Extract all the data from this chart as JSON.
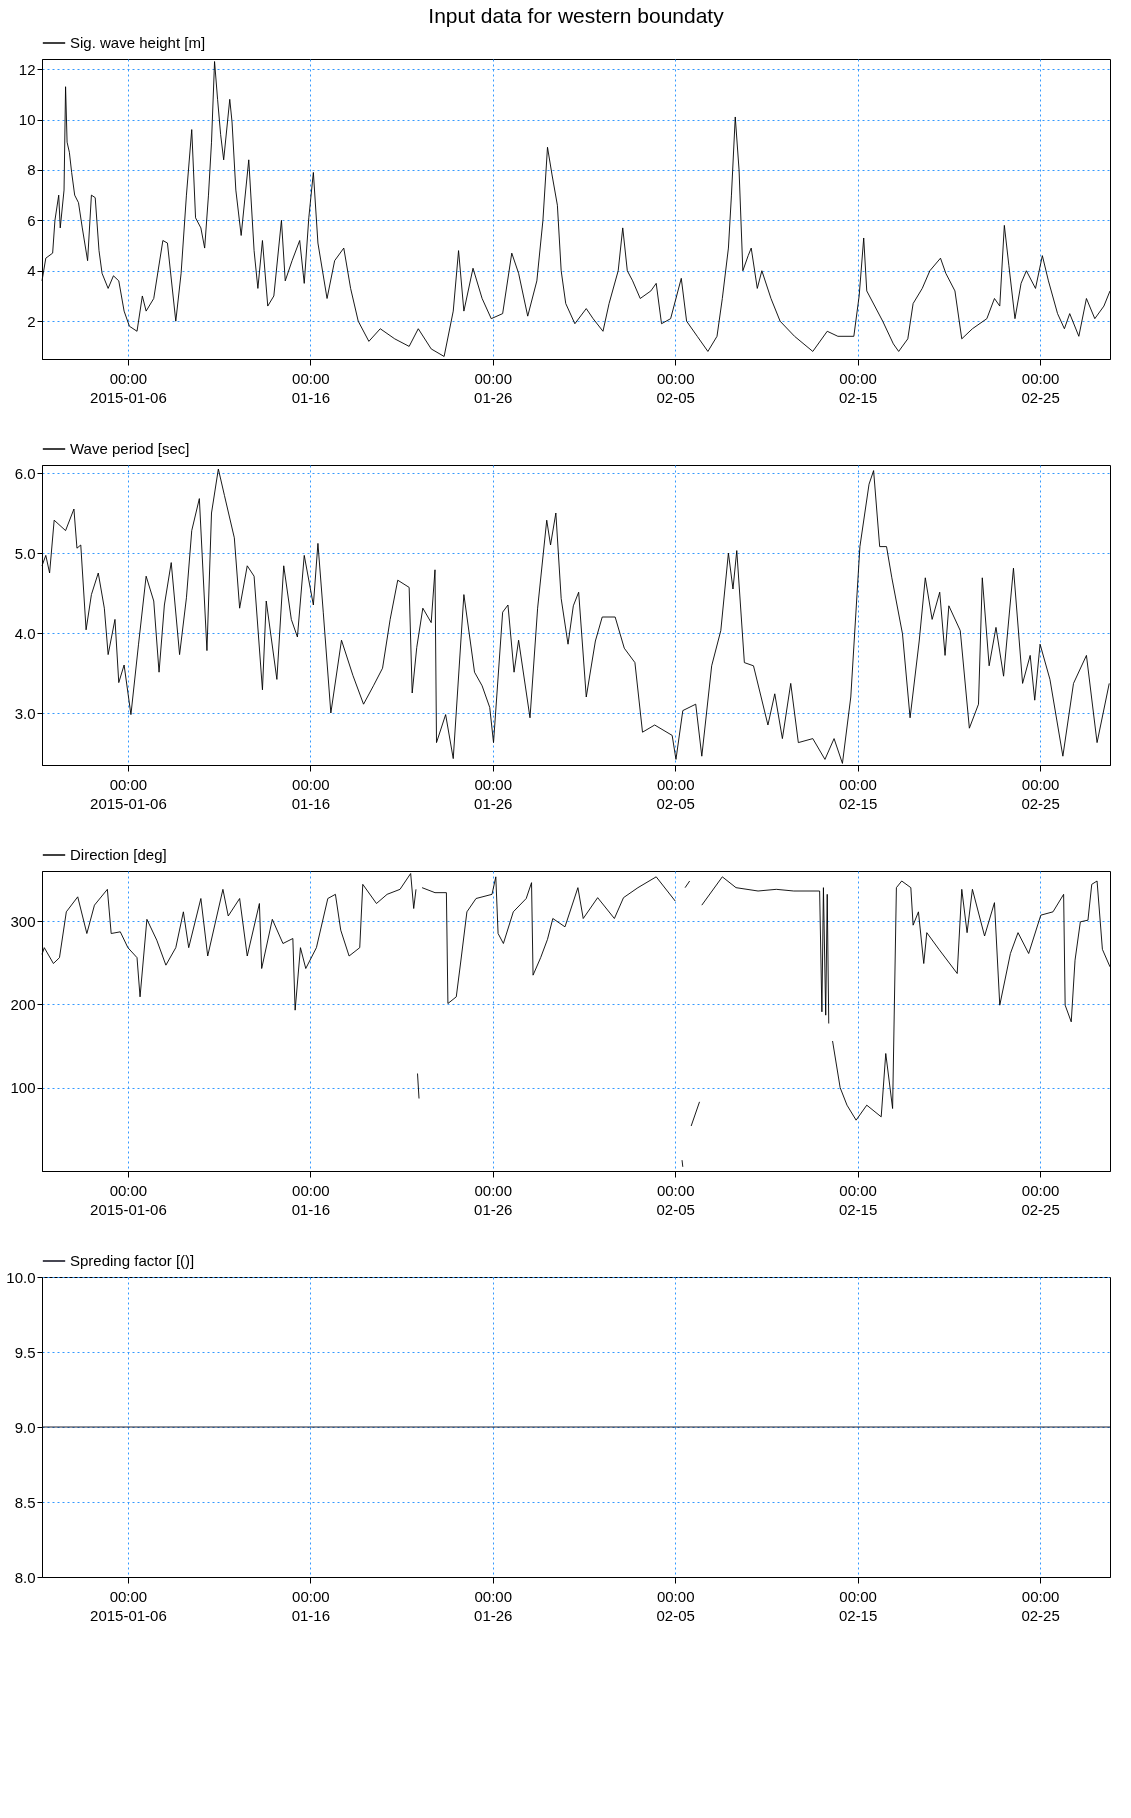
{
  "chart_data": [
    {
      "type": "line",
      "title": "Input data for western boundaty",
      "legend": "top left",
      "grid": true,
      "xlim": [
        "2015-01-01T07:00",
        "2015-02-28T20:00"
      ],
      "xticks": [
        {
          "value": "2015-01-06T00:00",
          "label": "00:00\n2015-01-06"
        },
        {
          "value": "2015-01-16T00:00",
          "label": "00:00\n01-16"
        },
        {
          "value": "2015-01-26T00:00",
          "label": "00:00\n01-26"
        },
        {
          "value": "2015-02-05T00:00",
          "label": "00:00\n02-05"
        },
        {
          "value": "2015-02-15T00:00",
          "label": "00:00\n02-15"
        },
        {
          "value": "2015-02-25T00:00",
          "label": "00:00\n02-25"
        }
      ],
      "ylim": [
        0.5,
        12.4
      ],
      "yticks": [
        2,
        4,
        6,
        8,
        10,
        12
      ],
      "series": [
        {
          "name": "Sig. wave height [m]",
          "color": "#000000",
          "x": [
            "2015-01-01T07:00",
            "2015-01-01T12:00",
            "2015-01-01T21:00",
            "2015-01-02T00:00",
            "2015-01-02T05:00",
            "2015-01-02T07:00",
            "2015-01-02T12:00",
            "2015-01-02T14:00",
            "2015-01-02T16:00",
            "2015-01-02T19:00",
            "2015-01-02T22:00",
            "2015-01-03T02:00",
            "2015-01-03T07:00",
            "2015-01-03T12:00",
            "2015-01-03T19:00",
            "2015-01-04T00:00",
            "2015-01-04T05:00",
            "2015-01-04T10:00",
            "2015-01-04T14:00",
            "2015-01-04T22:00",
            "2015-01-05T05:00",
            "2015-01-05T12:00",
            "2015-01-05T19:00",
            "2015-01-06T02:00",
            "2015-01-06T12:00",
            "2015-01-06T19:00",
            "2015-01-07T00:00",
            "2015-01-07T10:00",
            "2015-01-07T22:00",
            "2015-01-08T04:00",
            "2015-01-08T15:00",
            "2015-01-08T22:00",
            "2015-01-09T05:00",
            "2015-01-09T12:00",
            "2015-01-09T17:00",
            "2015-01-10T00:00",
            "2015-01-10T05:00",
            "2015-01-10T10:00",
            "2015-01-10T14:00",
            "2015-01-10T18:00",
            "2015-01-10T22:00",
            "2015-01-11T02:00",
            "2015-01-11T06:00",
            "2015-01-11T14:00",
            "2015-01-11T17:00",
            "2015-01-11T22:00",
            "2015-01-12T05:00",
            "2015-01-12T15:00",
            "2015-01-12T22:00",
            "2015-01-13T03:00",
            "2015-01-13T09:00",
            "2015-01-13T16:00",
            "2015-01-14T00:00",
            "2015-01-14T10:00",
            "2015-01-14T15:00",
            "2015-01-15T00:00",
            "2015-01-15T10:00",
            "2015-01-15T16:00",
            "2015-01-15T22:00",
            "2015-01-16T04:00",
            "2015-01-16T10:00",
            "2015-01-16T22:00",
            "2015-01-17T08:00",
            "2015-01-17T20:00",
            "2015-01-18T05:00",
            "2015-01-18T15:00",
            "2015-01-19T05:00",
            "2015-01-19T20:00",
            "2015-01-20T15:00",
            "2015-01-21T10:00",
            "2015-01-21T22:00",
            "2015-01-22T15:00",
            "2015-01-23T08:00",
            "2015-01-23T20:00",
            "2015-01-24T03:00",
            "2015-01-24T10:00",
            "2015-01-24T22:00",
            "2015-01-25T10:00",
            "2015-01-25T22:00",
            "2015-01-26T13:00",
            "2015-01-27T01:00",
            "2015-01-27T10:00",
            "2015-01-27T22:00",
            "2015-01-28T10:00",
            "2015-01-28T18:00",
            "2015-01-29T00:00",
            "2015-01-29T06:00",
            "2015-01-29T13:00",
            "2015-01-29T18:00",
            "2015-01-30T00:00",
            "2015-01-30T12:00",
            "2015-01-31T03:00",
            "2015-01-31T12:00",
            "2015-02-01T01:00",
            "2015-02-01T09:00",
            "2015-02-01T21:00",
            "2015-02-02T03:00",
            "2015-02-02T09:00",
            "2015-02-02T16:00",
            "2015-02-03T02:00",
            "2015-02-03T16:00",
            "2015-02-03T23:00",
            "2015-02-04T06:00",
            "2015-02-04T18:00",
            "2015-02-05T08:00",
            "2015-02-05T15:00",
            "2015-02-06T05:00",
            "2015-02-06T19:00",
            "2015-02-07T07:00",
            "2015-02-07T14:00",
            "2015-02-07T22:00",
            "2015-02-08T02:00",
            "2015-02-08T07:00",
            "2015-02-08T12:00",
            "2015-02-08T17:00",
            "2015-02-09T00:00",
            "2015-02-09T04:00",
            "2015-02-09T12:00",
            "2015-02-09T18:00",
            "2015-02-10T06:00",
            "2015-02-10T18:00",
            "2015-02-11T13:00",
            "2015-02-12T13:00",
            "2015-02-13T08:00",
            "2015-02-13T22:00",
            "2015-02-14T19:00",
            "2015-02-15T02:00",
            "2015-02-15T08:00",
            "2015-02-15T12:00",
            "2015-02-16T09:00",
            "2015-02-16T23:00",
            "2015-02-17T06:00",
            "2015-02-17T18:00",
            "2015-02-18T01:00",
            "2015-02-18T13:00",
            "2015-02-18T23:00",
            "2015-02-19T13:00",
            "2015-02-19T20:00",
            "2015-02-20T08:00",
            "2015-02-20T17:00",
            "2015-02-21T07:00",
            "2015-02-22T02:00",
            "2015-02-22T12:00",
            "2015-02-22T19:00",
            "2015-02-23T01:00",
            "2015-02-23T07:00",
            "2015-02-23T15:00",
            "2015-02-23T23:00",
            "2015-02-24T06:00",
            "2015-02-24T18:00",
            "2015-02-25T03:00",
            "2015-02-25T11:00",
            "2015-02-25T23:00",
            "2015-02-26T08:00",
            "2015-02-26T15:00",
            "2015-02-27T03:00",
            "2015-02-27T13:00",
            "2015-02-28T00:00",
            "2015-02-28T12:00",
            "2015-02-28T20:00"
          ],
          "values": [
            3.6,
            4.5,
            4.7,
            6.0,
            7.0,
            5.7,
            7.2,
            11.3,
            9.1,
            8.7,
            7.9,
            7.0,
            6.7,
            5.7,
            4.4,
            7.0,
            6.9,
            4.8,
            3.9,
            3.3,
            3.8,
            3.6,
            2.4,
            1.8,
            1.6,
            3.0,
            2.4,
            2.9,
            5.2,
            5.1,
            2.0,
            3.9,
            7.0,
            9.6,
            6.1,
            5.7,
            4.9,
            7.0,
            9.1,
            12.3,
            10.8,
            9.4,
            8.4,
            10.8,
            9.9,
            7.2,
            5.4,
            8.4,
            4.8,
            3.3,
            5.2,
            2.6,
            3.0,
            6.0,
            3.6,
            4.4,
            5.2,
            3.5,
            6.1,
            7.9,
            5.1,
            2.9,
            4.4,
            4.9,
            3.3,
            2.0,
            1.2,
            1.7,
            1.3,
            1.0,
            1.7,
            0.9,
            0.6,
            2.4,
            4.8,
            2.4,
            4.1,
            2.9,
            2.1,
            2.3,
            4.7,
            3.9,
            2.2,
            3.6,
            6.0,
            8.9,
            7.8,
            6.6,
            4.0,
            2.7,
            1.9,
            2.5,
            2.1,
            1.6,
            2.7,
            4.0,
            5.7,
            4.0,
            3.6,
            2.9,
            3.2,
            3.5,
            1.9,
            2.1,
            3.7,
            2.0,
            1.4,
            0.8,
            1.4,
            2.9,
            4.9,
            7.0,
            10.1,
            8.0,
            4.0,
            4.6,
            4.9,
            3.3,
            4.0,
            2.9,
            2.0,
            1.4,
            0.8,
            1.6,
            1.4,
            1.4,
            3.0,
            5.3,
            3.2,
            2.0,
            1.1,
            0.8,
            1.3,
            2.7,
            3.3,
            4.0,
            4.5,
            3.9,
            3.2,
            1.3,
            1.7,
            2.1,
            2.9,
            2.6,
            5.8,
            4.2,
            2.1,
            3.5,
            4.0,
            3.3,
            4.6,
            3.6,
            2.3,
            1.7,
            2.3,
            1.4,
            2.9,
            2.1,
            2.6,
            3.2
          ]
        }
      ]
    },
    {
      "type": "line",
      "legend": "top left",
      "grid": true,
      "xlim": [
        "2015-01-01T07:00",
        "2015-02-28T20:00"
      ],
      "xticks": [
        {
          "value": "2015-01-06T00:00",
          "label": "00:00\n2015-01-06"
        },
        {
          "value": "2015-01-16T00:00",
          "label": "00:00\n01-16"
        },
        {
          "value": "2015-01-26T00:00",
          "label": "00:00\n01-26"
        },
        {
          "value": "2015-02-05T00:00",
          "label": "00:00\n02-05"
        },
        {
          "value": "2015-02-15T00:00",
          "label": "00:00\n02-15"
        },
        {
          "value": "2015-02-25T00:00",
          "label": "00:00\n02-25"
        }
      ],
      "ylim": [
        2.35,
        6.1
      ],
      "yticks": [
        {
          "value": 3,
          "label": "3.0"
        },
        {
          "value": 4,
          "label": "4.0"
        },
        {
          "value": 5,
          "label": "5.0"
        },
        {
          "value": 6,
          "label": "6.0"
        }
      ],
      "series": [
        {
          "name": "Wave period [sec]",
          "color": "#000000",
          "x": [
            "2015-01-01T07:00",
            "2015-01-01T12:00",
            "2015-01-01T17:00",
            "2015-01-01T23:00",
            "2015-01-02T14:00",
            "2015-01-03T01:00",
            "2015-01-03T05:00",
            "2015-01-03T10:00",
            "2015-01-03T17:00",
            "2015-01-04T00:00",
            "2015-01-04T09:00",
            "2015-01-04T17:00",
            "2015-01-04T22:00",
            "2015-01-05T07:00",
            "2015-01-05T12:00",
            "2015-01-05T19:00",
            "2015-01-06T04:00",
            "2015-01-06T14:00",
            "2015-01-07T00:00",
            "2015-01-07T10:00",
            "2015-01-07T17:00",
            "2015-01-08T00:00",
            "2015-01-08T09:00",
            "2015-01-08T20:00",
            "2015-01-09T05:00",
            "2015-01-09T12:00",
            "2015-01-09T22:00",
            "2015-01-10T08:00",
            "2015-01-10T14:00",
            "2015-01-10T23:00",
            "2015-01-11T07:00",
            "2015-01-11T20:00",
            "2015-01-12T03:00",
            "2015-01-12T13:00",
            "2015-01-12T22:00",
            "2015-01-13T09:00",
            "2015-01-13T14:00",
            "2015-01-14T04:00",
            "2015-01-14T13:00",
            "2015-01-14T23:00",
            "2015-01-15T07:00",
            "2015-01-15T16:00",
            "2015-01-16T04:00",
            "2015-01-16T10:00",
            "2015-01-16T17:00",
            "2015-01-17T03:00",
            "2015-01-17T17:00",
            "2015-01-18T08:00",
            "2015-01-18T22:00",
            "2015-01-19T11:00",
            "2015-01-19T23:00",
            "2015-01-20T09:00",
            "2015-01-20T19:00",
            "2015-01-21T10:00",
            "2015-01-21T14:00",
            "2015-01-21T20:00",
            "2015-01-22T04:00",
            "2015-01-22T15:00",
            "2015-01-22T20:00",
            "2015-01-22T22:00",
            "2015-01-23T10:00",
            "2015-01-23T20:00",
            "2015-01-24T10:00",
            "2015-01-25T00:00",
            "2015-01-25T10:00",
            "2015-01-25T20:00",
            "2015-01-26T01:00",
            "2015-01-26T13:00",
            "2015-01-26T20:00",
            "2015-01-27T04:00",
            "2015-01-27T10:00",
            "2015-01-28T01:00",
            "2015-01-28T11:00",
            "2015-01-28T23:00",
            "2015-01-29T04:00",
            "2015-01-29T11:00",
            "2015-01-29T18:00",
            "2015-01-30T03:00",
            "2015-01-30T10:00",
            "2015-01-30T17:00",
            "2015-01-31T03:00",
            "2015-01-31T15:00",
            "2015-02-01T00:00",
            "2015-02-01T17:00",
            "2015-02-02T05:00",
            "2015-02-02T19:00",
            "2015-02-03T05:00",
            "2015-02-03T21:00",
            "2015-02-04T20:00",
            "2015-02-05T01:00",
            "2015-02-05T10:00",
            "2015-02-06T03:00",
            "2015-02-06T11:00",
            "2015-02-07T00:00",
            "2015-02-07T12:00",
            "2015-02-07T22:00",
            "2015-02-08T04:00",
            "2015-02-08T09:00",
            "2015-02-08T19:00",
            "2015-02-09T07:00",
            "2015-02-10T02:00",
            "2015-02-10T11:00",
            "2015-02-10T21:00",
            "2015-02-11T08:00",
            "2015-02-11T18:00",
            "2015-02-12T13:00",
            "2015-02-13T05:00",
            "2015-02-13T17:00",
            "2015-02-14T04:00",
            "2015-02-14T15:00",
            "2015-02-15T03:00",
            "2015-02-15T15:00",
            "2015-02-15T21:00",
            "2015-02-16T05:00",
            "2015-02-16T14:00",
            "2015-02-16T21:00",
            "2015-02-17T11:00",
            "2015-02-17T21:00",
            "2015-02-18T09:00",
            "2015-02-18T17:00",
            "2015-02-19T02:00",
            "2015-02-19T12:00",
            "2015-02-19T19:00",
            "2015-02-20T00:00",
            "2015-02-20T15:00",
            "2015-02-21T03:00",
            "2015-02-21T15:00",
            "2015-02-21T20:00",
            "2015-02-22T05:00",
            "2015-02-22T14:00",
            "2015-02-23T00:00",
            "2015-02-23T13:00",
            "2015-02-24T01:00",
            "2015-02-24T11:00",
            "2015-02-24T17:00",
            "2015-02-25T00:00",
            "2015-02-25T13:00",
            "2015-02-26T06:00",
            "2015-02-26T20:00",
            "2015-02-27T13:00",
            "2015-02-28T03:00",
            "2015-02-28T19:00"
          ],
          "values": [
            4.84,
            4.97,
            4.75,
            5.41,
            5.28,
            5.55,
            5.06,
            5.1,
            4.04,
            4.48,
            4.75,
            4.31,
            3.73,
            4.17,
            3.38,
            3.6,
            2.98,
            3.86,
            4.71,
            4.4,
            3.51,
            4.35,
            4.88,
            3.73,
            4.44,
            5.28,
            5.68,
            3.78,
            5.5,
            6.05,
            5.72,
            5.19,
            4.31,
            4.84,
            4.71,
            3.29,
            4.4,
            3.42,
            4.84,
            4.17,
            3.95,
            4.97,
            4.35,
            5.12,
            4.26,
            3.0,
            3.91,
            3.47,
            3.11,
            3.34,
            3.56,
            4.17,
            4.66,
            4.57,
            3.25,
            3.82,
            4.31,
            4.13,
            4.79,
            2.63,
            2.98,
            2.43,
            4.48,
            3.51,
            3.34,
            3.07,
            2.63,
            4.26,
            4.35,
            3.51,
            3.91,
            2.94,
            4.31,
            5.41,
            5.1,
            5.5,
            4.43,
            3.86,
            4.34,
            4.51,
            3.2,
            3.9,
            4.2,
            4.2,
            3.81,
            3.63,
            2.76,
            2.85,
            2.72,
            2.42,
            3.03,
            3.11,
            2.46,
            3.59,
            4.03,
            5.0,
            4.55,
            5.03,
            3.63,
            3.59,
            2.85,
            3.24,
            2.68,
            3.37,
            2.63,
            2.68,
            2.42,
            2.68,
            2.37,
            3.2,
            5.08,
            5.86,
            6.03,
            5.08,
            5.08,
            4.69,
            3.99,
            2.94,
            3.9,
            4.69,
            4.17,
            4.51,
            3.72,
            4.34,
            4.03,
            2.81,
            3.11,
            4.69,
            3.59,
            4.07,
            3.46,
            4.81,
            3.37,
            3.72,
            3.16,
            3.86,
            3.42,
            2.46,
            3.37,
            3.72,
            2.63,
            3.37
          ]
        }
      ]
    },
    {
      "type": "line",
      "legend": "top left",
      "grid": true,
      "xlim": [
        "2015-01-01T07:00",
        "2015-02-28T20:00"
      ],
      "xticks": [
        {
          "value": "2015-01-06T00:00",
          "label": "00:00\n2015-01-06"
        },
        {
          "value": "2015-01-16T00:00",
          "label": "00:00\n01-16"
        },
        {
          "value": "2015-01-26T00:00",
          "label": "00:00\n01-26"
        },
        {
          "value": "2015-02-05T00:00",
          "label": "00:00\n02-05"
        },
        {
          "value": "2015-02-15T00:00",
          "label": "00:00\n02-15"
        },
        {
          "value": "2015-02-25T00:00",
          "label": "00:00\n02-25"
        }
      ],
      "ylim": [
        0,
        360
      ],
      "yticks": [
        100,
        200,
        300
      ],
      "series": [
        {
          "name": "Direction [deg]",
          "color": "#000000",
          "x": [
            "2015-01-01T07:00",
            "2015-01-01T10:00",
            "2015-01-01T22:00",
            "2015-01-02T06:00",
            "2015-01-02T15:00",
            "2015-01-03T06:00",
            "2015-01-03T18:00",
            "2015-01-04T04:00",
            "2015-01-04T21:00",
            "2015-01-05T02:00",
            "2015-01-05T14:00",
            "2015-01-06T00:00",
            "2015-01-06T12:00",
            "2015-01-06T16:00",
            "2015-01-07T01:00",
            "2015-01-07T14:00",
            "2015-01-08T02:00",
            "2015-01-08T15:00",
            "2015-01-09T01:00",
            "2015-01-09T08:00",
            "2015-01-10T00:00",
            "2015-01-10T09:00",
            "2015-01-11T05:00",
            "2015-01-11T12:00",
            "2015-01-12T03:00",
            "2015-01-12T13:00",
            "2015-01-13T05:00",
            "2015-01-13T08:00",
            "2015-01-13T22:00",
            "2015-01-14T12:00",
            "2015-01-15T01:00",
            "2015-01-15T04:00",
            "2015-01-15T11:00",
            "2015-01-15T18:00",
            "2015-01-16T08:00",
            "2015-01-16T23:00",
            "2015-01-17T09:00",
            "2015-01-17T16:00",
            "2015-01-18T03:00",
            "2015-01-18T17:00",
            "2015-01-18T21:00",
            "2015-01-19T15:00",
            "2015-01-20T05:00",
            "2015-01-20T22:00",
            "2015-01-21T12:00",
            "2015-01-21T16:00",
            "2015-01-21T19:00",
            "2015-01-21T20:00",
            "2015-01-21T21:00",
            "2015-01-21T23:00",
            "2015-01-22T00:00",
            "2015-01-22T03:00",
            "2015-01-22T20:00",
            "2015-01-23T11:00",
            "2015-01-23T13:00",
            "2015-01-24T00:00",
            "2015-01-24T06:00",
            "2015-01-24T14:00",
            "2015-01-25T02:00",
            "2015-01-25T23:00",
            "2015-01-26T04:00",
            "2015-01-26T07:00",
            "2015-01-26T14:00",
            "2015-01-27T03:00",
            "2015-01-27T20:00",
            "2015-01-28T03:00",
            "2015-01-28T05:00",
            "2015-01-28T15:00",
            "2015-01-29T00:00",
            "2015-01-29T07:00",
            "2015-01-29T23:00",
            "2015-01-30T16:00",
            "2015-01-30T23:00",
            "2015-01-31T18:00",
            "2015-02-01T16:00",
            "2015-02-02T04:00",
            "2015-02-02T23:00",
            "2015-02-03T23:00",
            "2015-02-05T00:00",
            "2015-02-05T06:00",
            "2015-02-05T09:00",
            "2015-02-05T10:00",
            "2015-02-05T11:00",
            "2015-02-05T13:00",
            "2015-02-05T19:00",
            "2015-02-05T20:00",
            "2015-02-05T21:00",
            "2015-02-06T08:00",
            "2015-02-06T09:00",
            "2015-02-06T11:00",
            "2015-02-07T14:00",
            "2015-02-08T08:00",
            "2015-02-09T13:00",
            "2015-02-10T13:00",
            "2015-02-11T12:00",
            "2015-02-12T22:00",
            "2015-02-13T01:00",
            "2015-02-13T03:00",
            "2015-02-13T06:00",
            "2015-02-13T08:00",
            "2015-02-13T10:00",
            "2015-02-13T12:00",
            "2015-02-13T15:00",
            "2015-02-14T01:00",
            "2015-02-14T10:00",
            "2015-02-14T22:00",
            "2015-02-15T12:00",
            "2015-02-16T07:00",
            "2015-02-16T13:00",
            "2015-02-16T22:00",
            "2015-02-17T03:00",
            "2015-02-17T10:00",
            "2015-02-17T22:00",
            "2015-02-18T01:00",
            "2015-02-18T08:00",
            "2015-02-18T15:00",
            "2015-02-18T19:00",
            "2015-02-19T11:00",
            "2015-02-20T11:00",
            "2015-02-20T17:00",
            "2015-02-21T00:00",
            "2015-02-21T07:00",
            "2015-02-21T23:00",
            "2015-02-22T12:00",
            "2015-02-22T19:00",
            "2015-02-23T09:00",
            "2015-02-23T19:00",
            "2015-02-24T09:00",
            "2015-02-25T01:00",
            "2015-02-25T17:00",
            "2015-02-26T07:00",
            "2015-02-26T09:00",
            "2015-02-26T17:00",
            "2015-02-26T22:00",
            "2015-02-27T05:00",
            "2015-02-27T15:00",
            "2015-02-27T20:00",
            "2015-02-28T03:00",
            "2015-02-28T10:00",
            "2015-02-28T20:00"
          ],
          "values": [
            260,
            268,
            249,
            256,
            311,
            329,
            285,
            319,
            338,
            285,
            287,
            268,
            256,
            209,
            302,
            277,
            247,
            268,
            311,
            268,
            327,
            258,
            338,
            306,
            327,
            258,
            321,
            243,
            302,
            273,
            279,
            193,
            268,
            243,
            268,
            327,
            332,
            289,
            258,
            268,
            344,
            321,
            332,
            338,
            357,
            315,
            338,
            null,
            117,
            87,
            null,
            340,
            334,
            334,
            201,
            209,
            252,
            311,
            327,
            332,
            353,
            285,
            273,
            311,
            327,
            346,
            235,
            256,
            278,
            303,
            293,
            340,
            303,
            328,
            303,
            328,
            340,
            353,
            324,
            null,
            13,
            5,
            null,
            340,
            348,
            null,
            54,
            83,
            null,
            319,
            353,
            340,
            336,
            338,
            336,
            336,
            191,
            340,
            187,
            332,
            177,
            null,
            156,
            100,
            79,
            61,
            79,
            65,
            141,
            75,
            340,
            348,
            340,
            295,
            311,
            249,
            286,
            266,
            237,
            338,
            286,
            338,
            282,
            322,
            199,
            261,
            286,
            261,
            307,
            311,
            332,
            199,
            179,
            253,
            299,
            301,
            344,
            348,
            266,
            245
          ]
        }
      ]
    },
    {
      "type": "line",
      "legend": "top left",
      "grid": true,
      "xlim": [
        "2015-01-01T07:00",
        "2015-02-28T20:00"
      ],
      "xticks": [
        {
          "value": "2015-01-06T00:00",
          "label": "00:00\n2015-01-06"
        },
        {
          "value": "2015-01-16T00:00",
          "label": "00:00\n01-16"
        },
        {
          "value": "2015-01-26T00:00",
          "label": "00:00\n01-26"
        },
        {
          "value": "2015-02-05T00:00",
          "label": "00:00\n02-05"
        },
        {
          "value": "2015-02-15T00:00",
          "label": "00:00\n02-15"
        },
        {
          "value": "2015-02-25T00:00",
          "label": "00:00\n02-25"
        }
      ],
      "ylim": [
        8,
        10
      ],
      "yticks": [
        {
          "value": 8,
          "label": "8.0"
        },
        {
          "value": 8.5,
          "label": "8.5"
        },
        {
          "value": 9,
          "label": "9.0"
        },
        {
          "value": 9.5,
          "label": "9.5"
        },
        {
          "value": 10,
          "label": "10.0"
        }
      ],
      "series": [
        {
          "name": "Spreding factor [()]",
          "color": "#0a0a1a",
          "x": [
            "2015-01-01T07:00",
            "2015-02-28T20:00"
          ],
          "values": [
            9,
            9
          ]
        }
      ]
    }
  ]
}
